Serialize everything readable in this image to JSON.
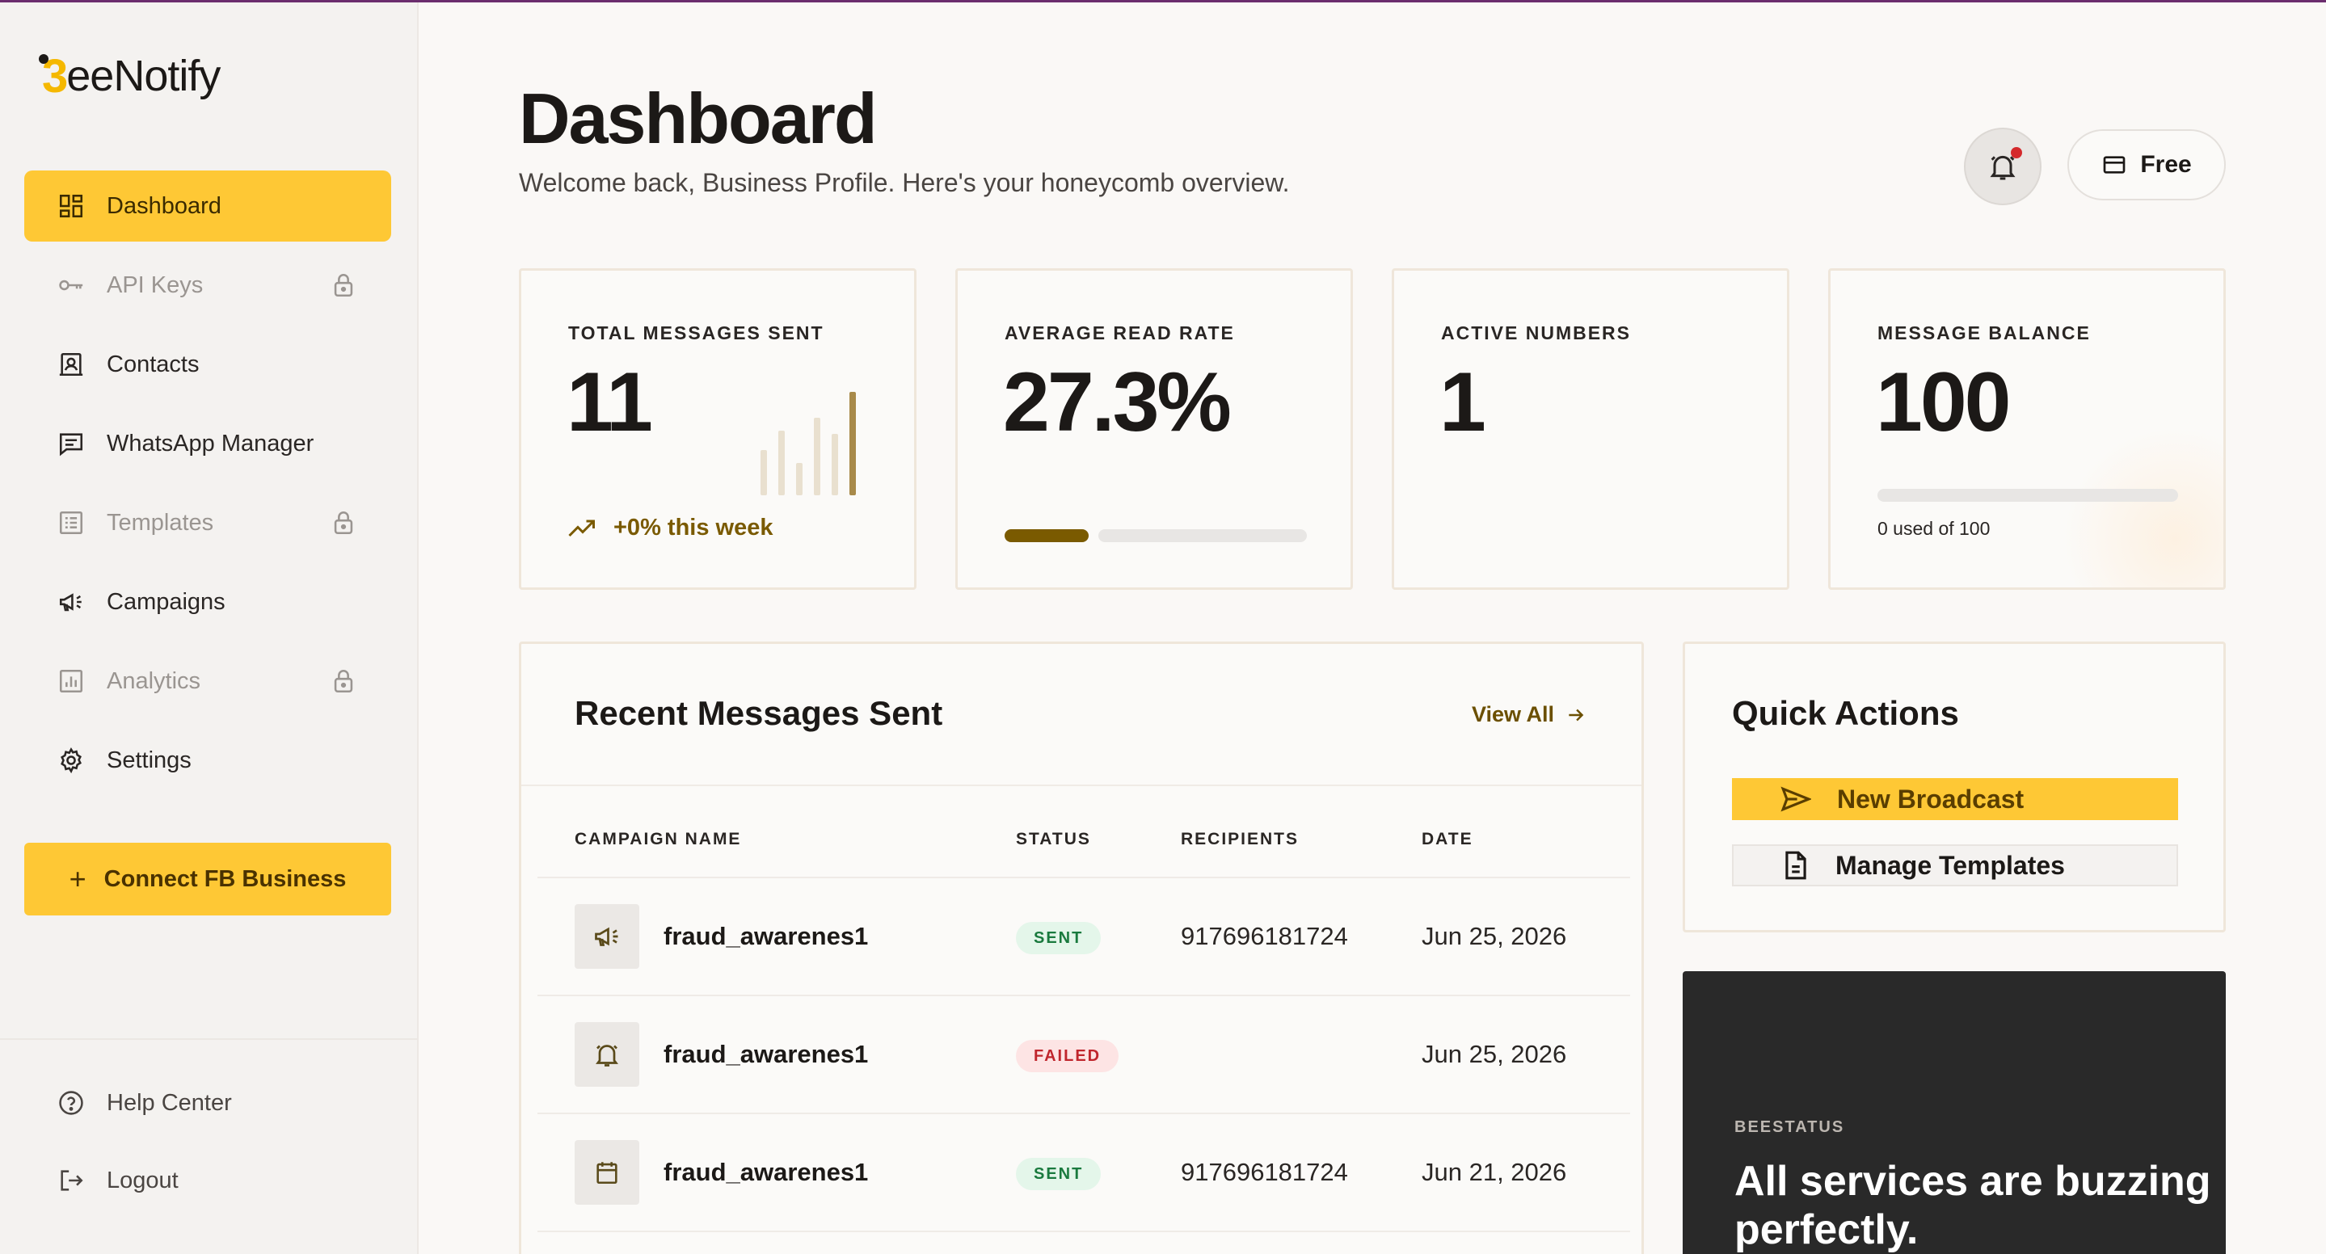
{
  "app": {
    "logo_text": "eeNotify"
  },
  "sidebar": {
    "items": [
      {
        "label": "Dashboard",
        "icon": "grid-icon",
        "active": true,
        "locked": false
      },
      {
        "label": "API Keys",
        "icon": "key-icon",
        "active": false,
        "locked": true
      },
      {
        "label": "Contacts",
        "icon": "contacts-icon",
        "active": false,
        "locked": false
      },
      {
        "label": "WhatsApp Manager",
        "icon": "chat-icon",
        "active": false,
        "locked": false
      },
      {
        "label": "Templates",
        "icon": "list-icon",
        "active": false,
        "locked": true
      },
      {
        "label": "Campaigns",
        "icon": "megaphone-icon",
        "active": false,
        "locked": false
      },
      {
        "label": "Analytics",
        "icon": "chart-icon",
        "active": false,
        "locked": true
      },
      {
        "label": "Settings",
        "icon": "gear-icon",
        "active": false,
        "locked": false
      }
    ],
    "connect_label": "Connect FB Business",
    "bottom": [
      {
        "label": "Help Center",
        "icon": "help-icon"
      },
      {
        "label": "Logout",
        "icon": "logout-icon"
      }
    ]
  },
  "header": {
    "title": "Dashboard",
    "subtitle": "Welcome back, Business Profile. Here's your honeycomb overview.",
    "plan_label": "Free"
  },
  "stats": [
    {
      "label": "TOTAL MESSAGES SENT",
      "value": "11",
      "trend": "+0% this week"
    },
    {
      "label": "AVERAGE READ RATE",
      "value": "27.3%",
      "progress": 0.273
    },
    {
      "label": "ACTIVE NUMBERS",
      "value": "1"
    },
    {
      "label": "MESSAGE BALANCE",
      "value": "100",
      "usage_text": "0 used of 100",
      "progress": 0
    }
  ],
  "recent": {
    "title": "Recent Messages Sent",
    "view_all": "View All",
    "columns": [
      "CAMPAIGN NAME",
      "STATUS",
      "RECIPIENTS",
      "DATE"
    ],
    "rows": [
      {
        "icon": "megaphone-icon",
        "name": "fraud_awarenes1",
        "status": "SENT",
        "recipients": "917696181724",
        "date": "Jun 25, 2026"
      },
      {
        "icon": "bell-icon",
        "name": "fraud_awarenes1",
        "status": "FAILED",
        "recipients": "",
        "date": "Jun 25, 2026"
      },
      {
        "icon": "calendar-icon",
        "name": "fraud_awarenes1",
        "status": "SENT",
        "recipients": "917696181724",
        "date": "Jun 21, 2026"
      }
    ]
  },
  "quick_actions": {
    "title": "Quick Actions",
    "primary": "New Broadcast",
    "secondary": "Manage Templates"
  },
  "status_card": {
    "label": "BEESTATUS",
    "text": "All services are buzzing perfectly."
  },
  "colors": {
    "accent": "#fec835",
    "brand_dark": "#7a5a00",
    "sent": "#1a7a3e",
    "failed": "#c0262d"
  }
}
